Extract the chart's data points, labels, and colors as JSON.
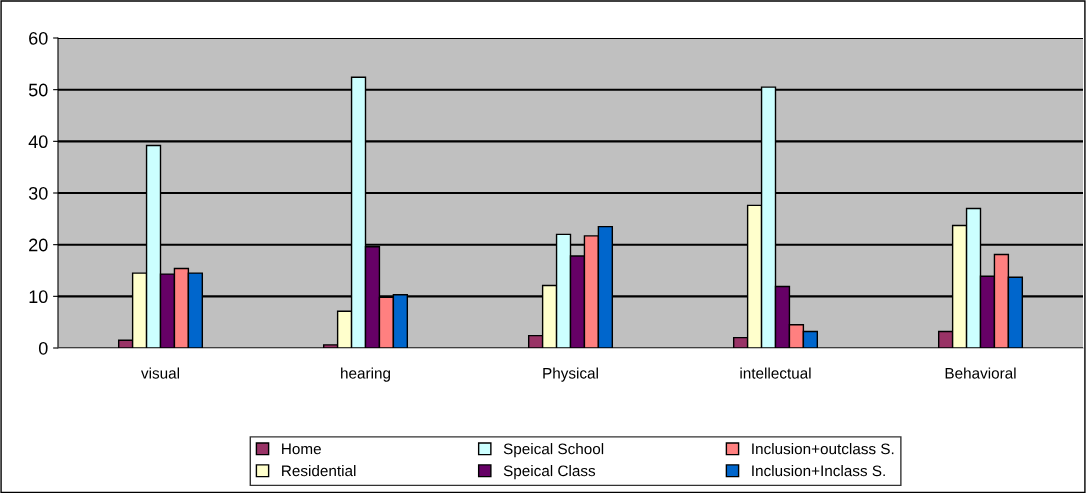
{
  "chart_data": {
    "type": "bar",
    "categories": [
      "visual",
      "hearing",
      "Physical",
      "intellectual",
      "Behavioral"
    ],
    "series": [
      {
        "name": "Home",
        "color": "#993366",
        "values": [
          1.5,
          0.6,
          2.4,
          2.0,
          3.2
        ]
      },
      {
        "name": "Residential",
        "color": "#ffffcc",
        "values": [
          14.5,
          7.1,
          12.1,
          27.6,
          23.7
        ]
      },
      {
        "name": "Speical School",
        "color": "#ccffff",
        "values": [
          39.2,
          52.4,
          22.0,
          50.5,
          27.0
        ]
      },
      {
        "name": "Speical Class",
        "color": "#660066",
        "values": [
          14.3,
          19.6,
          17.8,
          11.9,
          13.9
        ]
      },
      {
        "name": "Inclusion+outclass S.",
        "color": "#ff8080",
        "values": [
          15.4,
          9.8,
          21.7,
          4.5,
          18.1
        ]
      },
      {
        "name": "Inclusion+Inclass S.",
        "color": "#0066cc",
        "values": [
          14.5,
          10.3,
          23.5,
          3.2,
          13.7
        ]
      }
    ],
    "ylim": [
      0,
      60
    ],
    "yticks": [
      0,
      10,
      20,
      30,
      40,
      50,
      60
    ],
    "grid": "y",
    "legend": "bottom"
  }
}
